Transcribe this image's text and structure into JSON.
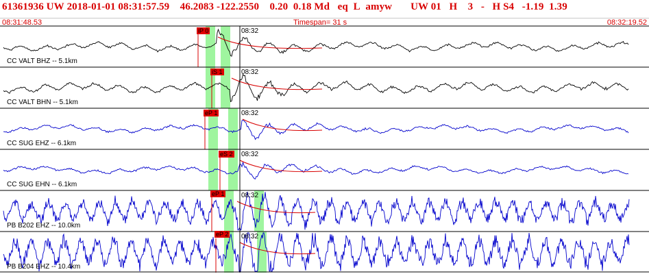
{
  "header": {
    "event_id": "61361936",
    "network": "UW",
    "datetime": "2018-01-01 08:31:57.59",
    "lat": "46.2083",
    "lon": "-122.2550",
    "depth": "0.20",
    "mag": "0.18 Md",
    "etype": "eq",
    "loc_flag": "L",
    "analyst": "amyw",
    "agency": "UW 01",
    "quality": "H",
    "phase_count": "3",
    "dash": "-",
    "hs": "H S4",
    "v1": "-1.19",
    "v2": "1.39"
  },
  "sub": {
    "start_time": "08:31:48.53",
    "timespan": "Timespan=  31 s",
    "end_time": "08:32:19.52"
  },
  "colors": {
    "header_text": "#d80000",
    "pick_flag": "#e00000",
    "window_highlight": "#9ff59f",
    "trace_black": "#000000",
    "trace_blue": "#0000cc",
    "coda_line": "#d80000"
  },
  "traces": [
    {
      "name": "CC VALT BHZ -- 5.1km",
      "pick": "iP 0",
      "time": "08:32",
      "color": "#000000"
    },
    {
      "name": "CC VALT BHN -- 5.1km",
      "pick": "iS 1",
      "time": "08:32",
      "color": "#000000"
    },
    {
      "name": "CC SUG EHZ -- 6.1km",
      "pick": "eP 1",
      "time": "08:32",
      "color": "#0000cc"
    },
    {
      "name": "CC SUG EHN -- 6.1km",
      "pick": "eS 2",
      "time": "08:32",
      "color": "#0000cc"
    },
    {
      "name": "PB B202 EHZ -- 10.0km",
      "pick": "eP 1",
      "time": "08:32",
      "color": "#0000cc"
    },
    {
      "name": "PB B204 EHZ -- 10.4km",
      "pick": "eP 2",
      "time": "08:32",
      "color": "#0000cc"
    }
  ]
}
